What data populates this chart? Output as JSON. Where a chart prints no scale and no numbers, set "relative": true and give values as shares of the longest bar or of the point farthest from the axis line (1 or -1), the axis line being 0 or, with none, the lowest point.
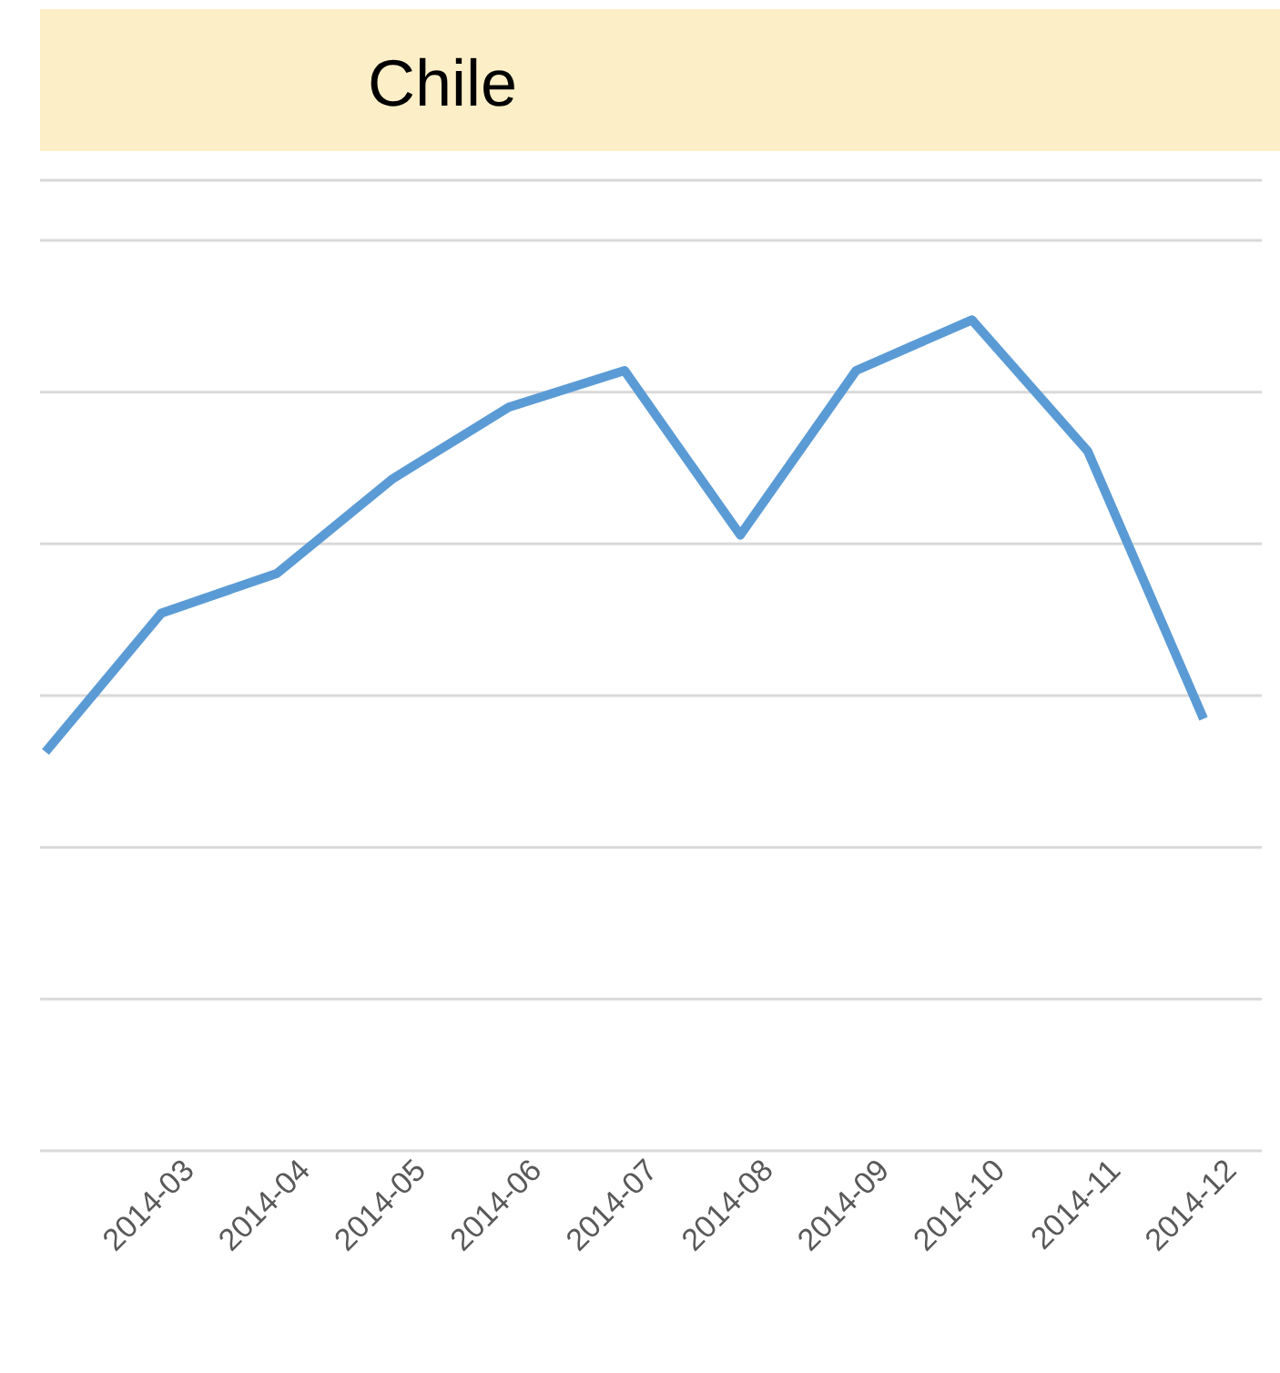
{
  "chart_data": {
    "type": "line",
    "title": "Chile",
    "relative": true,
    "grid": "y",
    "marker": "none",
    "categories": [
      null,
      "2014-03",
      "2014-04",
      "2014-05",
      "2014-06",
      "2014-07",
      "2014-08",
      "2014-09",
      "2014-10",
      "2014-11",
      "2014-12"
    ],
    "series": [
      {
        "color": "#5b9bd5",
        "values": [
          0.48,
          0.647,
          0.695,
          0.809,
          0.895,
          0.939,
          0.741,
          0.939,
          1,
          0.842,
          0.52
        ]
      }
    ]
  }
}
